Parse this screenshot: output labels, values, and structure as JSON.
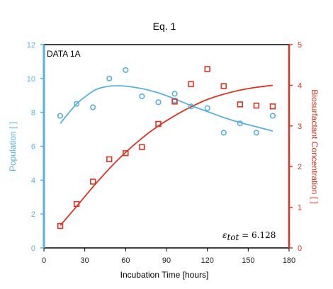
{
  "chart_data": {
    "type": "scatter",
    "title": "Eq. 1",
    "xlabel": "Incubation Time [hours]",
    "ylabel_left": "Population [ ]",
    "ylabel_right": "Biosurfactant Concentration [ ]",
    "xlim": [
      0,
      180
    ],
    "ylim_left": [
      0,
      12
    ],
    "ylim_right": [
      0,
      5
    ],
    "xticks": [
      "0",
      "30",
      "60",
      "90",
      "120",
      "150",
      "180"
    ],
    "yticks_left": [
      "0",
      "2",
      "4",
      "6",
      "8",
      "10",
      "12"
    ],
    "yticks_right": [
      "0",
      "1",
      "2",
      "3",
      "4",
      "5"
    ],
    "colors": {
      "population": "#5aafdf",
      "biosurfactant": "#dd3322",
      "frame": "#000000"
    },
    "annotation_label": "DATA 1A",
    "epsilon_symbol": "ε",
    "epsilon_sub": "tot",
    "epsilon_value": " = 6.128",
    "series": [
      {
        "axis": "left",
        "marker": "circle",
        "color": "#5aafdf",
        "x": [
          12,
          24,
          36,
          48,
          60,
          72,
          84,
          96,
          96,
          108,
          120,
          132,
          144,
          156,
          168
        ],
        "y": [
          7.8,
          8.5,
          8.3,
          10.0,
          10.5,
          8.95,
          8.6,
          9.1,
          8.7,
          8.35,
          8.25,
          6.8,
          7.35,
          6.8,
          7.8
        ],
        "fit": {
          "x": [
            12,
            24,
            36,
            42,
            48,
            54,
            60,
            72,
            84,
            96,
            108,
            120,
            132,
            144,
            156,
            168
          ],
          "y": [
            7.35,
            8.5,
            9.25,
            9.45,
            9.55,
            9.57,
            9.55,
            9.4,
            9.15,
            8.8,
            8.4,
            8.05,
            7.7,
            7.4,
            7.15,
            6.9
          ]
        }
      },
      {
        "axis": "right",
        "marker": "square",
        "color": "#dd3322",
        "x": [
          12,
          24,
          36,
          48,
          60,
          72,
          84,
          96,
          108,
          120,
          132,
          144,
          156,
          168
        ],
        "y": [
          0.54,
          1.08,
          1.63,
          2.18,
          2.33,
          2.48,
          3.05,
          3.6,
          4.03,
          4.4,
          3.98,
          3.53,
          3.5,
          3.48
        ],
        "fit": {
          "x": [
            12,
            24,
            36,
            48,
            60,
            72,
            84,
            96,
            108,
            120,
            132,
            144,
            156,
            168
          ],
          "y": [
            0.55,
            1.02,
            1.5,
            1.95,
            2.35,
            2.7,
            3.0,
            3.25,
            3.47,
            3.65,
            3.78,
            3.88,
            3.95,
            4.0
          ]
        }
      }
    ]
  }
}
